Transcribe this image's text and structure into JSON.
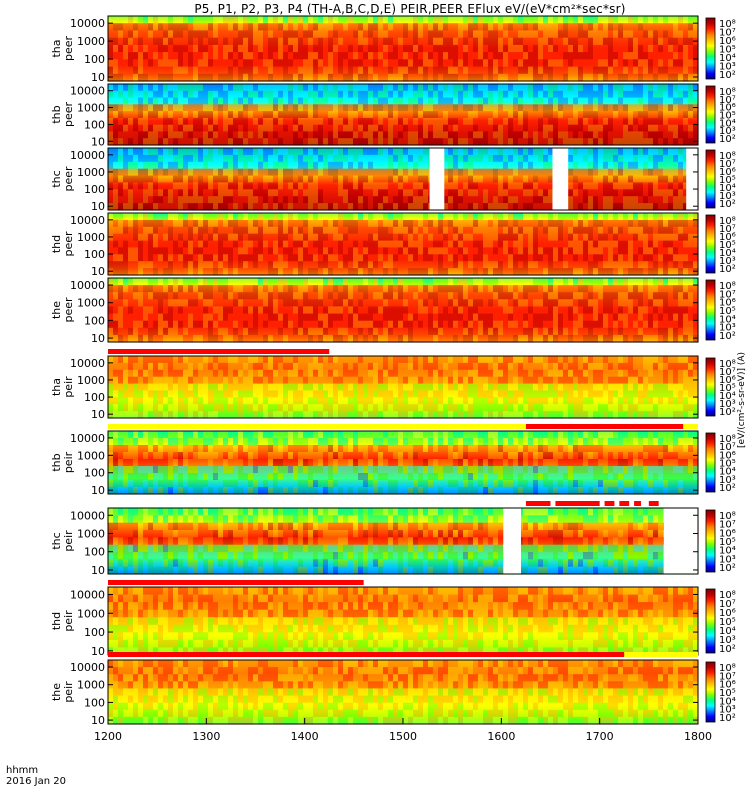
{
  "title": "P5, P1, P2, P3, P4 (TH-A,B,C,D,E) PEIR,PEER EFlux eV/(eV*cm²*sec*sr)",
  "footer": {
    "line1": "hhmm",
    "line2": "2016 Jan 20"
  },
  "units_label": "[eV/(cm²-s-sr-eV)] (A)",
  "colorbar_ticks": [
    "10⁸",
    "10⁷",
    "10⁶",
    "10⁵",
    "10⁴",
    "10³",
    "10²"
  ],
  "colors": {
    "spectrum": [
      "#000080",
      "#0000ff",
      "#0080ff",
      "#00ffff",
      "#00ff80",
      "#80ff00",
      "#ffff00",
      "#ffc000",
      "#ff8000",
      "#ff2000",
      "#c00000",
      "#800000"
    ],
    "flag_red": "#ff0000",
    "flag_yellow": "#ffff00"
  },
  "chart_data": {
    "type": "heatmap",
    "x_axis": {
      "range": [
        1200,
        1800
      ],
      "ticks": [
        1200,
        1300,
        1400,
        1500,
        1600,
        1700,
        1800
      ]
    },
    "y_axis": {
      "scale": "log",
      "range": [
        6,
        25000
      ],
      "ticks": [
        "10000",
        "1000",
        "100",
        "10"
      ]
    },
    "panels": [
      {
        "label": "tha",
        "sublabel": "peer",
        "species": "electron",
        "core_energy": [
          300,
          3000
        ],
        "gaps": []
      },
      {
        "label": "thb",
        "sublabel": "peer",
        "species": "electron",
        "core_energy": [
          40,
          300
        ],
        "gaps": []
      },
      {
        "label": "thc",
        "sublabel": "peer",
        "species": "electron",
        "core_energy": [
          30,
          250
        ],
        "gaps": [
          [
            1527,
            1542
          ],
          [
            1652,
            1668
          ],
          [
            1788,
            1800
          ]
        ]
      },
      {
        "label": "thd",
        "sublabel": "peer",
        "species": "electron",
        "core_energy": [
          300,
          3000
        ],
        "gaps": []
      },
      {
        "label": "the",
        "sublabel": "peer",
        "species": "electron",
        "core_energy": [
          300,
          3000
        ],
        "gaps": []
      },
      {
        "label": "tha",
        "sublabel": "peir",
        "species": "ion",
        "core_energy": [
          2000,
          10000
        ],
        "gaps": []
      },
      {
        "label": "thb",
        "sublabel": "peir",
        "species": "ion",
        "core_energy": [
          500,
          3000
        ],
        "gaps": []
      },
      {
        "label": "thc",
        "sublabel": "peir",
        "species": "ion",
        "core_energy": [
          500,
          3000
        ],
        "gaps": [
          [
            1602,
            1620
          ],
          [
            1765,
            1800
          ]
        ]
      },
      {
        "label": "thd",
        "sublabel": "peir",
        "species": "ion",
        "core_energy": [
          2000,
          10000
        ],
        "gaps": []
      },
      {
        "label": "the",
        "sublabel": "peir",
        "species": "ion",
        "core_energy": [
          2000,
          10000
        ],
        "gaps": []
      }
    ],
    "flag_bars": [
      {
        "after_panel": 5,
        "segments": [
          {
            "from": 1200,
            "to": 1425,
            "color": "red"
          }
        ]
      },
      {
        "after_panel": 6,
        "segments": [
          {
            "from": 1200,
            "to": 1625,
            "color": "yellow"
          },
          {
            "from": 1625,
            "to": 1785,
            "color": "red"
          },
          {
            "from": 1785,
            "to": 1800,
            "color": "yellow"
          }
        ]
      },
      {
        "after_panel": 7,
        "segments": [
          {
            "from": 1625,
            "to": 1650,
            "color": "red"
          },
          {
            "from": 1655,
            "to": 1700,
            "color": "red"
          },
          {
            "from": 1705,
            "to": 1715,
            "color": "red"
          },
          {
            "from": 1720,
            "to": 1730,
            "color": "red"
          },
          {
            "from": 1735,
            "to": 1742,
            "color": "red"
          },
          {
            "from": 1750,
            "to": 1760,
            "color": "red"
          }
        ]
      },
      {
        "after_panel": 8,
        "segments": [
          {
            "from": 1200,
            "to": 1460,
            "color": "red"
          }
        ]
      },
      {
        "after_panel": 9,
        "segments": [
          {
            "from": 1200,
            "to": 1725,
            "color": "red"
          },
          {
            "from": 1725,
            "to": 1800,
            "color": "yellow"
          }
        ]
      }
    ]
  }
}
